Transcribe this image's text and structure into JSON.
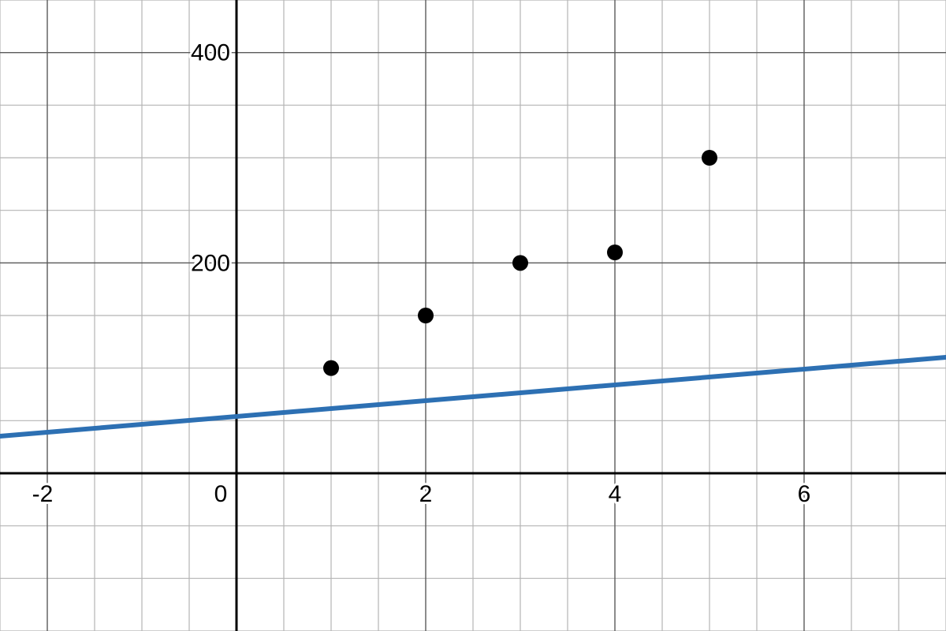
{
  "chart_data": {
    "type": "scatter",
    "xlim": [
      -2.5,
      7.5
    ],
    "ylim": [
      -150,
      450
    ],
    "grid": true,
    "x_ticks": [
      -2,
      0,
      2,
      4,
      6
    ],
    "y_ticks": [
      200,
      400
    ],
    "x_tick_labels": [
      "-2",
      "0",
      "2",
      "4",
      "6"
    ],
    "y_tick_labels": [
      "200",
      "400"
    ],
    "points": [
      {
        "x": 1,
        "y": 100
      },
      {
        "x": 2,
        "y": 150
      },
      {
        "x": 3,
        "y": 200
      },
      {
        "x": 4,
        "y": 210
      },
      {
        "x": 5,
        "y": 300
      }
    ],
    "line": {
      "intercept": 54,
      "slope": 7.5,
      "color": "#2d70b3"
    },
    "point_color": "#000000"
  }
}
